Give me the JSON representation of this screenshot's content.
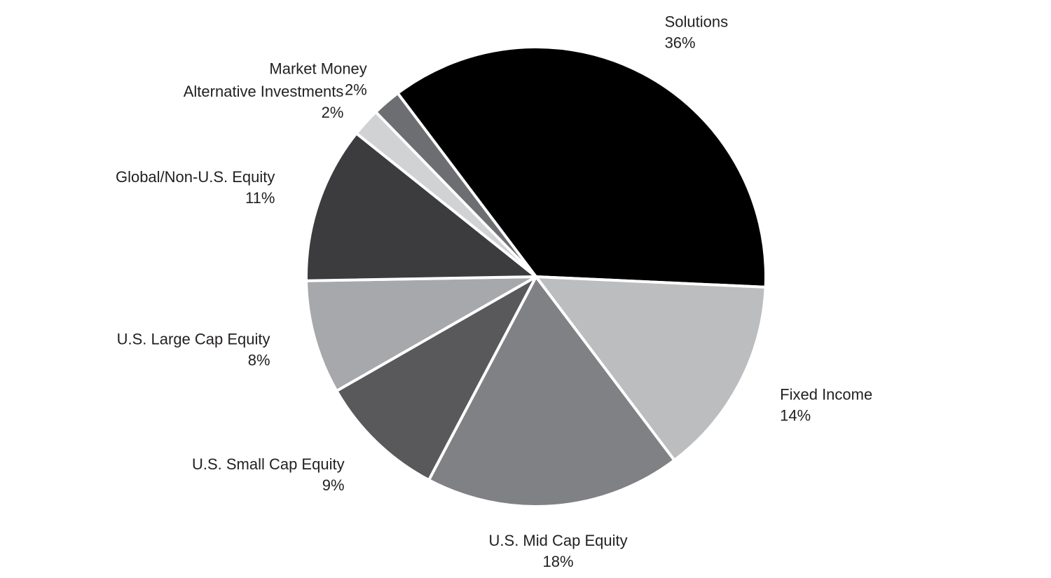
{
  "chart_data": {
    "type": "pie",
    "categories": [
      "Solutions",
      "Fixed Income",
      "U.S. Mid Cap Equity",
      "U.S. Small Cap Equity",
      "U.S. Large Cap Equity",
      "Global/Non-U.S. Equity",
      "Alternative Investments",
      "Market Money"
    ],
    "values": [
      36,
      14,
      18,
      9,
      8,
      11,
      2,
      2
    ],
    "value_labels": [
      "36%",
      "14%",
      "18%",
      "9%",
      "8%",
      "11%",
      "2%",
      "2%"
    ],
    "colors": [
      "#000000",
      "#bcbdbf",
      "#808184",
      "#59595b",
      "#a7a8ab",
      "#3c3c3e",
      "#d1d2d4",
      "#6d6e71"
    ]
  }
}
